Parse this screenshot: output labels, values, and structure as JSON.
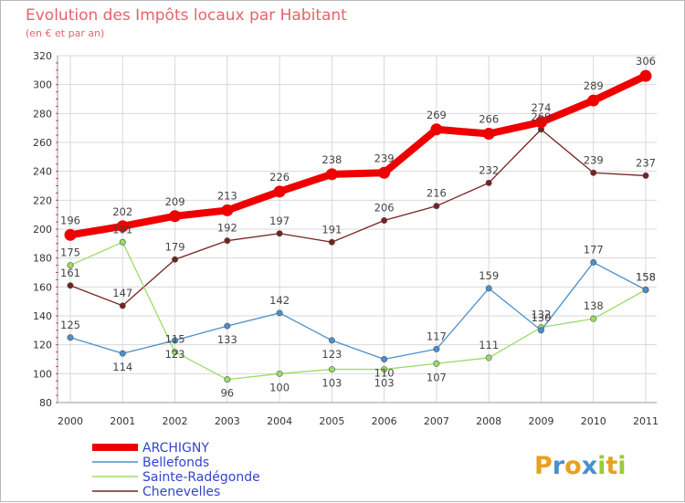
{
  "chart_data": {
    "type": "line",
    "title": "Evolution des Impôts locaux par Habitant",
    "subtitle": "(en € et par an)",
    "xlabel": "",
    "ylabel": "",
    "ylim": [
      80,
      320
    ],
    "yticks": [
      "80",
      "100",
      "120",
      "140",
      "160",
      "180",
      "200",
      "220",
      "240",
      "260",
      "280",
      "300",
      "320"
    ],
    "categories": [
      "2000",
      "2001",
      "2002",
      "2003",
      "2004",
      "2005",
      "2006",
      "2007",
      "2008",
      "2009",
      "2010",
      "2011"
    ],
    "grid": true,
    "legend_position": "bottom-left",
    "series": [
      {
        "name": "ARCHIGNY",
        "color": "#ee0000",
        "values": [
          196,
          202,
          209,
          213,
          226,
          238,
          239,
          269,
          266,
          274,
          289,
          306
        ],
        "labels": [
          "196",
          "202",
          "209",
          "213",
          "226",
          "238",
          "239",
          "269",
          "266",
          "274",
          "289",
          "306"
        ]
      },
      {
        "name": "Bellefonds",
        "color": "#4a90cc",
        "values": [
          125,
          114,
          123,
          133,
          142,
          123,
          110,
          117,
          159,
          130,
          177,
          158
        ],
        "labels": [
          "125",
          "114",
          "123",
          "133",
          "142",
          "123",
          "110",
          "117",
          "159",
          "130",
          "177",
          "158"
        ]
      },
      {
        "name": "Sainte-Radégonde",
        "color": "#99dd66",
        "values": [
          175,
          191,
          115,
          96,
          100,
          103,
          103,
          107,
          111,
          132,
          138,
          158
        ],
        "labels": [
          "175",
          "191",
          "115",
          "96",
          "100",
          "103",
          "103",
          "107",
          "111",
          "132",
          "138",
          "158"
        ]
      },
      {
        "name": "Chenevelles",
        "color": "#772222",
        "values": [
          161,
          147,
          179,
          192,
          197,
          191,
          206,
          216,
          232,
          269,
          239,
          237
        ],
        "labels": [
          "161",
          "147",
          "179",
          "192",
          "197",
          "191",
          "206",
          "216",
          "232",
          "269",
          "239",
          "237"
        ]
      }
    ]
  },
  "logo": {
    "letters": [
      "P",
      "r",
      "o",
      "x",
      "i",
      "t",
      "i"
    ],
    "colors": [
      "#e8a020",
      "#4a90cc",
      "#e8a020",
      "#4a90cc",
      "#99cc33",
      "#e8a020",
      "#99cc33"
    ]
  },
  "colors": {
    "title": "#e8626a",
    "grid": "#d8d8d8",
    "axis": "#999999",
    "legend_text": "#3344cc"
  }
}
